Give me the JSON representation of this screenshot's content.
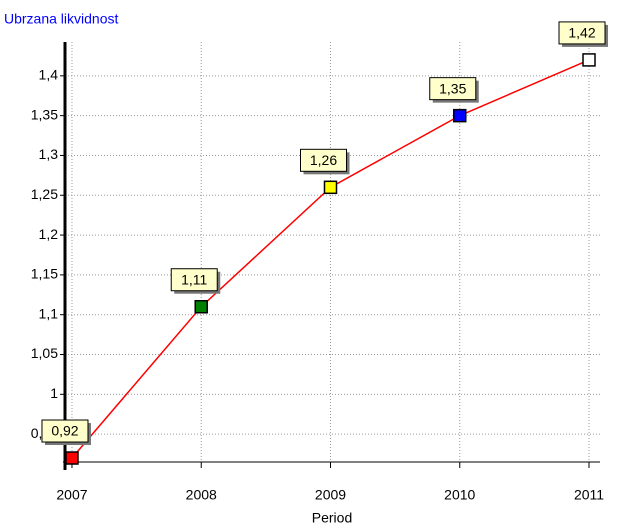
{
  "chart_data": {
    "type": "line",
    "title": "Ubrzana likvidnost",
    "xlabel": "Period",
    "x": [
      2007,
      2008,
      2009,
      2010,
      2011
    ],
    "values": [
      0.92,
      1.11,
      1.26,
      1.35,
      1.42
    ],
    "value_labels": [
      "0,92",
      "1,11",
      "1,26",
      "1,35",
      "1,42"
    ],
    "marker_colors": [
      "#ff0000",
      "#008000",
      "#ffff00",
      "#0000ff",
      "#ffffff"
    ],
    "color": "#ff0000",
    "xlim": [
      2006.946,
      2011.085
    ],
    "xticks": [
      2007,
      2008,
      2009,
      2010,
      2011
    ],
    "ylim": [
      0.915,
      1.4425
    ],
    "yticks": [
      {
        "value": 0.95,
        "label": "0,95"
      },
      {
        "value": 1,
        "label": "1"
      },
      {
        "value": 1.05,
        "label": "1,05"
      },
      {
        "value": 1.1,
        "label": "1,1"
      },
      {
        "value": 1.15,
        "label": "1,15"
      },
      {
        "value": 1.2,
        "label": "1,2"
      },
      {
        "value": 1.25,
        "label": "1,25"
      },
      {
        "value": 1.3,
        "label": "1,3"
      },
      {
        "value": 1.35,
        "label": "1,35"
      },
      {
        "value": 1.4,
        "label": "1,4"
      }
    ],
    "grid": true
  }
}
